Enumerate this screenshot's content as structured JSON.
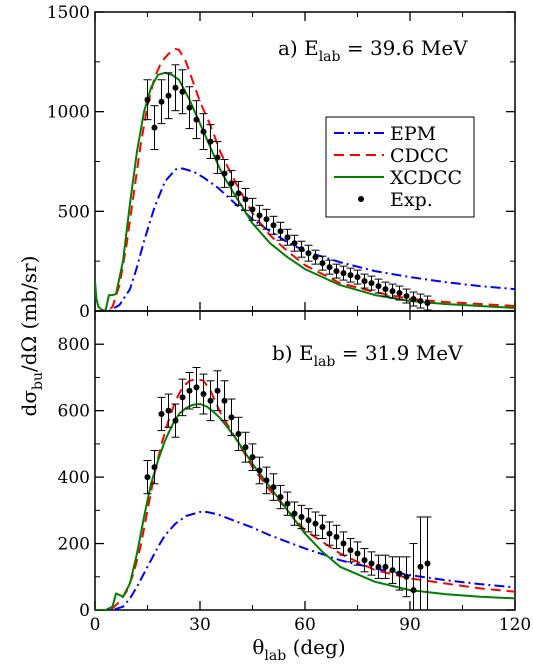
{
  "figure": {
    "xlabel": {
      "main": "θ",
      "sub": "lab",
      "rest": " (deg)"
    },
    "ylabel": {
      "pre": "dσ",
      "sub": "bu",
      "rest": "/dΩ (mb/sr)"
    },
    "x_ticks": [
      "0",
      "30",
      "60",
      "90",
      "120"
    ]
  },
  "chart_data": [
    {
      "type": "line",
      "panel": "top",
      "annotation": {
        "pre": "a) E",
        "sub": "lab",
        "rest": " = 39.6 MeV"
      },
      "xlim": [
        0,
        120
      ],
      "ylim": [
        0,
        1500
      ],
      "y_ticks": [
        "0",
        "500",
        "1000",
        "1500"
      ],
      "legend": {
        "placement": "right",
        "entries": [
          "EPM",
          "CDCC",
          "XCDCC",
          "Exp."
        ]
      },
      "series": [
        {
          "name": "EPM",
          "color": "#0000ff",
          "style": "dash-dot",
          "x": [
            0,
            4,
            7,
            10,
            12,
            14,
            17,
            20,
            23,
            25,
            28,
            31,
            35,
            40,
            45,
            50,
            55,
            60,
            70,
            80,
            90,
            100,
            110,
            120
          ],
          "y": [
            0,
            0,
            30,
            110,
            220,
            350,
            520,
            650,
            710,
            715,
            700,
            670,
            620,
            540,
            460,
            400,
            345,
            300,
            245,
            200,
            170,
            145,
            125,
            110
          ]
        },
        {
          "name": "CDCC",
          "color": "#ff0000",
          "style": "dashed",
          "x": [
            0,
            3,
            5,
            7,
            9,
            11,
            13,
            15,
            17,
            19,
            21,
            23,
            24,
            26,
            28,
            30,
            33,
            36,
            40,
            45,
            50,
            55,
            60,
            70,
            80,
            90,
            100,
            110,
            120
          ],
          "y": [
            0,
            0,
            20,
            130,
            330,
            580,
            830,
            1030,
            1170,
            1250,
            1290,
            1315,
            1310,
            1250,
            1150,
            1050,
            930,
            790,
            650,
            490,
            380,
            300,
            230,
            140,
            95,
            60,
            45,
            35,
            25
          ]
        },
        {
          "name": "XCDCC",
          "color": "#008000",
          "style": "solid",
          "x": [
            0,
            0.4,
            1,
            2,
            3,
            4,
            5,
            6,
            8,
            10,
            12,
            14,
            16,
            18,
            20,
            22,
            24,
            27,
            30,
            33,
            36,
            40,
            45,
            50,
            55,
            60,
            70,
            80,
            90,
            100,
            110,
            120
          ],
          "y": [
            150,
            60,
            20,
            5,
            2,
            80,
            80,
            85,
            250,
            540,
            800,
            1000,
            1120,
            1185,
            1195,
            1185,
            1160,
            1060,
            940,
            820,
            700,
            580,
            440,
            340,
            270,
            210,
            130,
            80,
            50,
            35,
            25,
            15
          ]
        },
        {
          "name": "Exp.",
          "color": "#000000",
          "style": "points",
          "x": [
            15,
            17,
            19,
            21,
            23,
            25,
            27,
            29,
            31,
            33,
            35,
            37,
            39,
            41,
            43,
            45,
            47,
            49,
            51,
            53,
            55,
            57,
            59,
            61,
            63,
            65,
            67,
            69,
            71,
            73,
            75,
            77,
            79,
            81,
            83,
            85,
            87,
            89,
            91,
            93,
            95
          ],
          "y": [
            1060,
            920,
            1050,
            1080,
            1120,
            1100,
            1020,
            960,
            900,
            850,
            770,
            690,
            640,
            590,
            560,
            510,
            480,
            460,
            430,
            400,
            370,
            340,
            310,
            290,
            270,
            240,
            220,
            200,
            190,
            180,
            170,
            150,
            140,
            125,
            110,
            100,
            90,
            75,
            60,
            50,
            40
          ],
          "err": [
            100,
            110,
            110,
            115,
            115,
            110,
            105,
            95,
            90,
            85,
            80,
            70,
            65,
            60,
            55,
            55,
            50,
            50,
            45,
            45,
            40,
            40,
            40,
            40,
            35,
            35,
            35,
            35,
            35,
            35,
            35,
            35,
            35,
            35,
            35,
            35,
            35,
            35,
            35,
            35,
            35
          ]
        }
      ]
    },
    {
      "type": "line",
      "panel": "bottom",
      "annotation": {
        "pre": "b) E",
        "sub": "lab",
        "rest": " = 31.9 MeV"
      },
      "xlim": [
        0,
        120
      ],
      "ylim": [
        0,
        900
      ],
      "y_ticks": [
        "0",
        "200",
        "400",
        "600",
        "800"
      ],
      "series": [
        {
          "name": "EPM",
          "color": "#0000ff",
          "style": "dash-dot",
          "x": [
            0,
            5,
            8,
            10,
            12,
            15,
            18,
            20,
            23,
            26,
            30,
            32,
            35,
            40,
            45,
            50,
            55,
            60,
            65,
            70,
            80,
            90,
            100,
            110,
            120
          ],
          "y": [
            0,
            0,
            10,
            35,
            70,
            130,
            190,
            225,
            260,
            283,
            295,
            295,
            288,
            268,
            248,
            225,
            205,
            185,
            168,
            150,
            125,
            105,
            90,
            78,
            68
          ]
        },
        {
          "name": "CDCC",
          "color": "#ff0000",
          "style": "dashed",
          "x": [
            0,
            3,
            5,
            7,
            9,
            11,
            13,
            15,
            17,
            19,
            21,
            23,
            25,
            27,
            29,
            31,
            33,
            36,
            40,
            45,
            50,
            55,
            60,
            70,
            80,
            90,
            100,
            110,
            120
          ],
          "y": [
            0,
            0,
            5,
            25,
            55,
            110,
            190,
            300,
            410,
            500,
            570,
            630,
            670,
            690,
            695,
            690,
            660,
            590,
            520,
            430,
            360,
            300,
            240,
            170,
            120,
            95,
            80,
            65,
            55
          ]
        },
        {
          "name": "XCDCC",
          "color": "#008000",
          "style": "solid",
          "x": [
            0,
            3,
            5,
            6,
            8,
            10,
            12,
            14,
            16,
            18,
            20,
            22,
            24,
            26,
            28,
            30,
            32,
            34,
            36,
            40,
            45,
            50,
            55,
            60,
            65,
            70,
            80,
            90,
            100,
            110,
            120
          ],
          "y": [
            0,
            0,
            10,
            50,
            40,
            80,
            170,
            280,
            380,
            450,
            510,
            555,
            590,
            608,
            618,
            620,
            612,
            595,
            575,
            520,
            440,
            370,
            300,
            230,
            175,
            130,
            85,
            60,
            48,
            40,
            35
          ]
        },
        {
          "name": "Exp.",
          "color": "#000000",
          "style": "points",
          "x": [
            15,
            17,
            19,
            21,
            23,
            25,
            27,
            29,
            31,
            33,
            35,
            37,
            39,
            41,
            43,
            45,
            47,
            49,
            51,
            53,
            55,
            57,
            59,
            61,
            63,
            65,
            67,
            69,
            71,
            73,
            75,
            77,
            79,
            81,
            83,
            85,
            87,
            89,
            91,
            93,
            95
          ],
          "y": [
            400,
            430,
            590,
            600,
            570,
            640,
            660,
            670,
            650,
            630,
            660,
            630,
            580,
            530,
            490,
            460,
            420,
            390,
            370,
            340,
            320,
            290,
            280,
            270,
            260,
            250,
            230,
            220,
            200,
            180,
            170,
            150,
            140,
            130,
            130,
            120,
            110,
            100,
            60,
            130,
            140
          ],
          "err": [
            50,
            50,
            50,
            50,
            50,
            55,
            55,
            60,
            60,
            60,
            60,
            60,
            55,
            50,
            45,
            40,
            40,
            40,
            40,
            35,
            35,
            35,
            35,
            35,
            35,
            35,
            35,
            35,
            35,
            35,
            35,
            35,
            35,
            35,
            35,
            40,
            50,
            60,
            140,
            150,
            140
          ]
        }
      ]
    }
  ]
}
